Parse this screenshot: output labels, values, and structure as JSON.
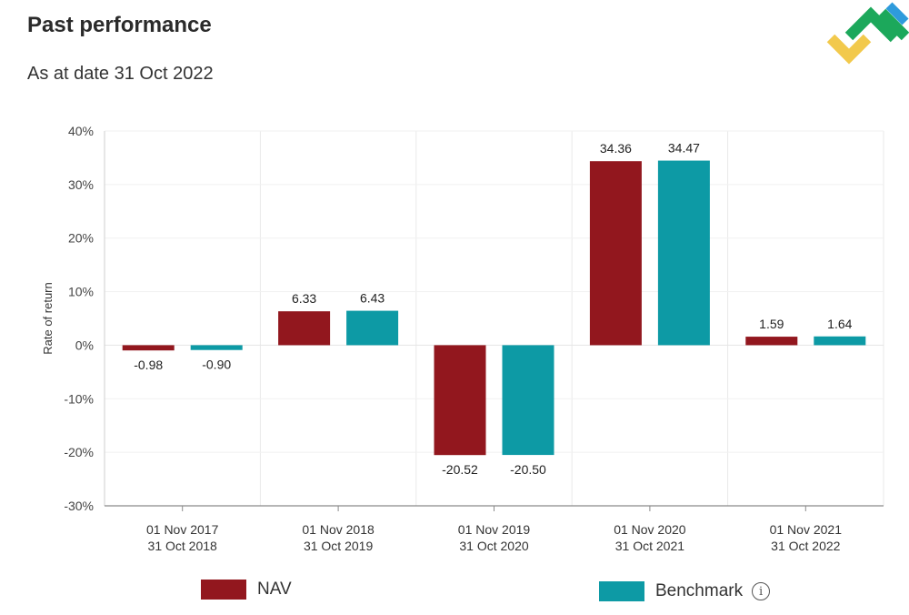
{
  "header": {
    "title": "Past performance",
    "subtitle": "As at date 31 Oct 2022"
  },
  "logo": {
    "icon": "brand-logo-icon",
    "colors": [
      "#1ca85b",
      "#f2c94c",
      "#2e9bdc"
    ]
  },
  "legend": {
    "nav_label": "NAV",
    "benchmark_label": "Benchmark",
    "info_icon": "info-icon"
  },
  "colors": {
    "nav": "#92171e",
    "benchmark": "#0d9aa5"
  },
  "chart_data": {
    "type": "bar",
    "ylabel": "Rate of return",
    "ylim": [
      -30,
      40
    ],
    "yticks": [
      40,
      30,
      20,
      10,
      0,
      -10,
      -20,
      -30
    ],
    "ytick_labels": [
      "40%",
      "30%",
      "20%",
      "10%",
      "0%",
      "-10%",
      "-20%",
      "-30%"
    ],
    "categories": [
      [
        "01 Nov 2017",
        "31 Oct 2018"
      ],
      [
        "01 Nov 2018",
        "31 Oct 2019"
      ],
      [
        "01 Nov 2019",
        "31 Oct 2020"
      ],
      [
        "01 Nov 2020",
        "31 Oct 2021"
      ],
      [
        "01 Nov 2021",
        "31 Oct 2022"
      ]
    ],
    "series": [
      {
        "name": "NAV",
        "values": [
          -0.98,
          6.33,
          -20.52,
          34.36,
          1.59
        ],
        "labels": [
          "-0.98",
          "6.33",
          "-20.52",
          "34.36",
          "1.59"
        ]
      },
      {
        "name": "Benchmark",
        "values": [
          -0.9,
          6.43,
          -20.5,
          34.47,
          1.64
        ],
        "labels": [
          "-0.90",
          "6.43",
          "-20.50",
          "34.47",
          "1.64"
        ]
      }
    ],
    "grid": true
  }
}
